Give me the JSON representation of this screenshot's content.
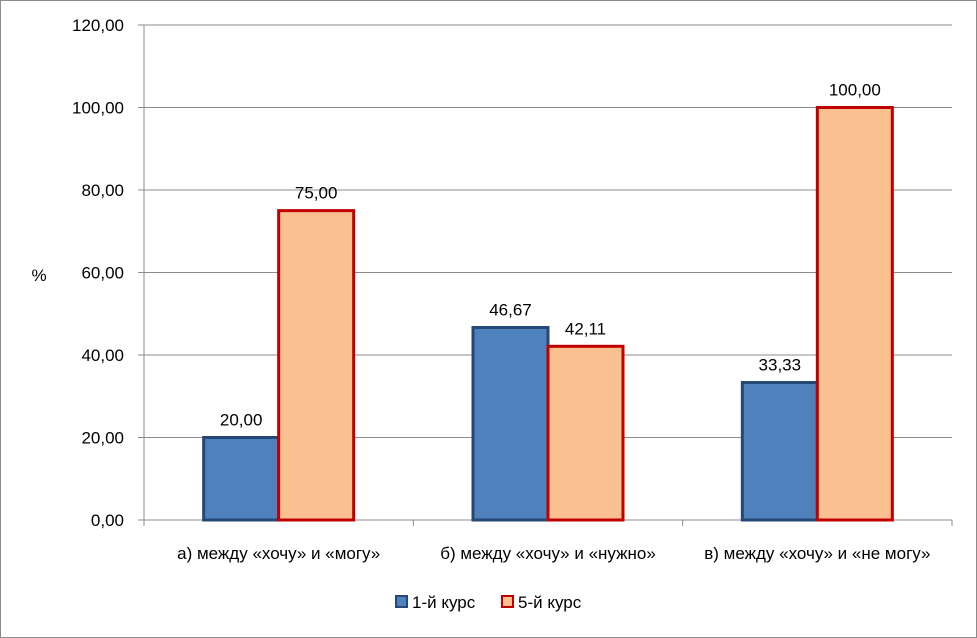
{
  "chart_data": {
    "type": "bar",
    "ylabel": "%",
    "ylim": [
      0,
      120
    ],
    "yticks": [
      "0,00",
      "20,00",
      "40,00",
      "60,00",
      "80,00",
      "100,00",
      "120,00"
    ],
    "categories": [
      "а) между «хочу» и «могу»",
      "б) между «хочу» и «нужно»",
      "в) между «хочу» и «не могу»"
    ],
    "series": [
      {
        "name": "1-й курс",
        "values": [
          20.0,
          46.67,
          33.33
        ],
        "labels": [
          "20,00",
          "46,67",
          "33,33"
        ],
        "fill": "#4f81bd",
        "stroke": "#254874"
      },
      {
        "name": "5-й курс",
        "values": [
          75.0,
          42.11,
          100.0
        ],
        "labels": [
          "75,00",
          "42,11",
          "100,00"
        ],
        "fill": "#fac090",
        "stroke": "#c00000"
      }
    ],
    "grid": true,
    "legend": "bottom"
  }
}
